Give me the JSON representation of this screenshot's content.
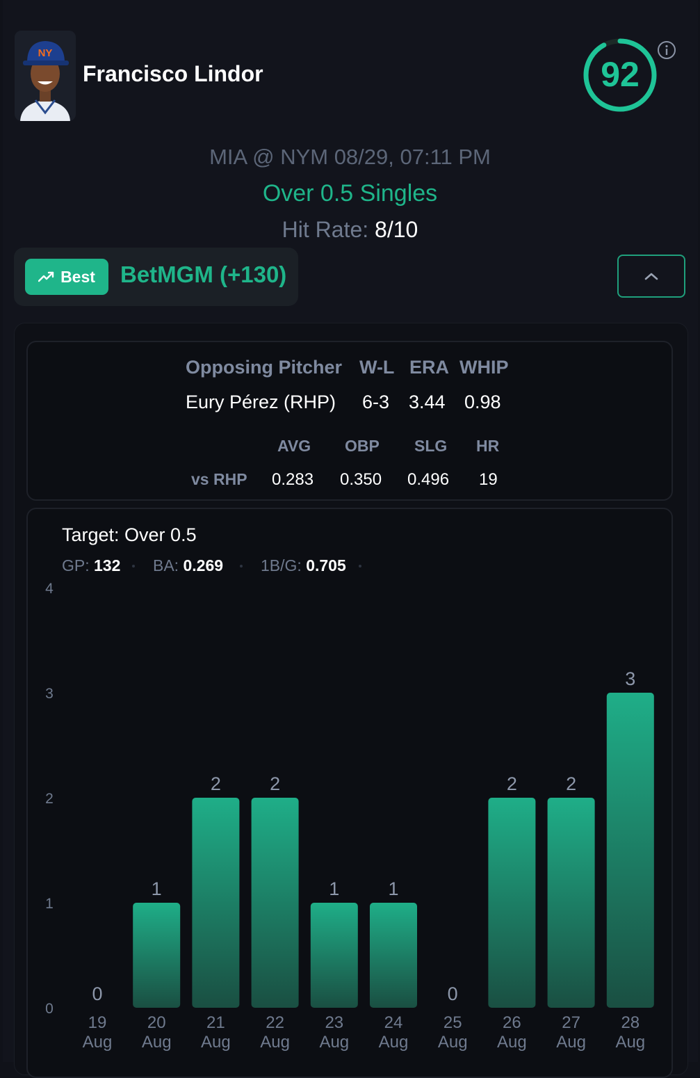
{
  "player": {
    "name": "Francisco Lindor",
    "avatar_icon": "player-headshot"
  },
  "score": {
    "value": "92",
    "fraction": 0.92,
    "color": "#1fc497"
  },
  "game": {
    "matchup": "MIA @ NYM 08/29, 07:11 PM"
  },
  "bet": {
    "line": "Over 0.5 Singles"
  },
  "hit_rate": {
    "label": "Hit Rate:",
    "value": "8/10"
  },
  "book": {
    "best_label": "Best",
    "name": "BetMGM (+130)",
    "icon": "trending-up-icon"
  },
  "pitcher": {
    "headers": {
      "name": "Opposing Pitcher",
      "wl": "W-L",
      "era": "ERA",
      "whip": "WHIP"
    },
    "name": "Eury Pérez (RHP)",
    "wl": "6-3",
    "era": "3.44",
    "whip": "0.98"
  },
  "splits": {
    "row_label": "vs RHP",
    "headers": {
      "avg": "AVG",
      "obp": "OBP",
      "slg": "SLG",
      "hr": "HR"
    },
    "avg": "0.283",
    "obp": "0.350",
    "slg": "0.496",
    "hr": "19"
  },
  "target": {
    "label": "Target: Over 0.5"
  },
  "stats": {
    "gp_label": "GP:",
    "gp": "132",
    "ba_label": "BA:",
    "ba": "0.269",
    "bpg_label": "1B/G:",
    "bpg": "0.705"
  },
  "colors": {
    "accent": "#1fb58a",
    "bar_top": "#1fae88",
    "bar_bottom": "#1a4f42"
  },
  "chart_data": {
    "type": "bar",
    "categories": [
      "19 Aug",
      "20 Aug",
      "21 Aug",
      "22 Aug",
      "23 Aug",
      "24 Aug",
      "25 Aug",
      "26 Aug",
      "27 Aug",
      "28 Aug"
    ],
    "day_labels": [
      "19",
      "20",
      "21",
      "22",
      "23",
      "24",
      "25",
      "26",
      "27",
      "28"
    ],
    "month_labels": [
      "Aug",
      "Aug",
      "Aug",
      "Aug",
      "Aug",
      "Aug",
      "Aug",
      "Aug",
      "Aug",
      "Aug"
    ],
    "values": [
      0,
      1,
      2,
      2,
      1,
      1,
      0,
      2,
      2,
      3
    ],
    "yticks": [
      0,
      1,
      2,
      3,
      4
    ],
    "ylim": [
      0,
      4
    ],
    "grid": false
  }
}
